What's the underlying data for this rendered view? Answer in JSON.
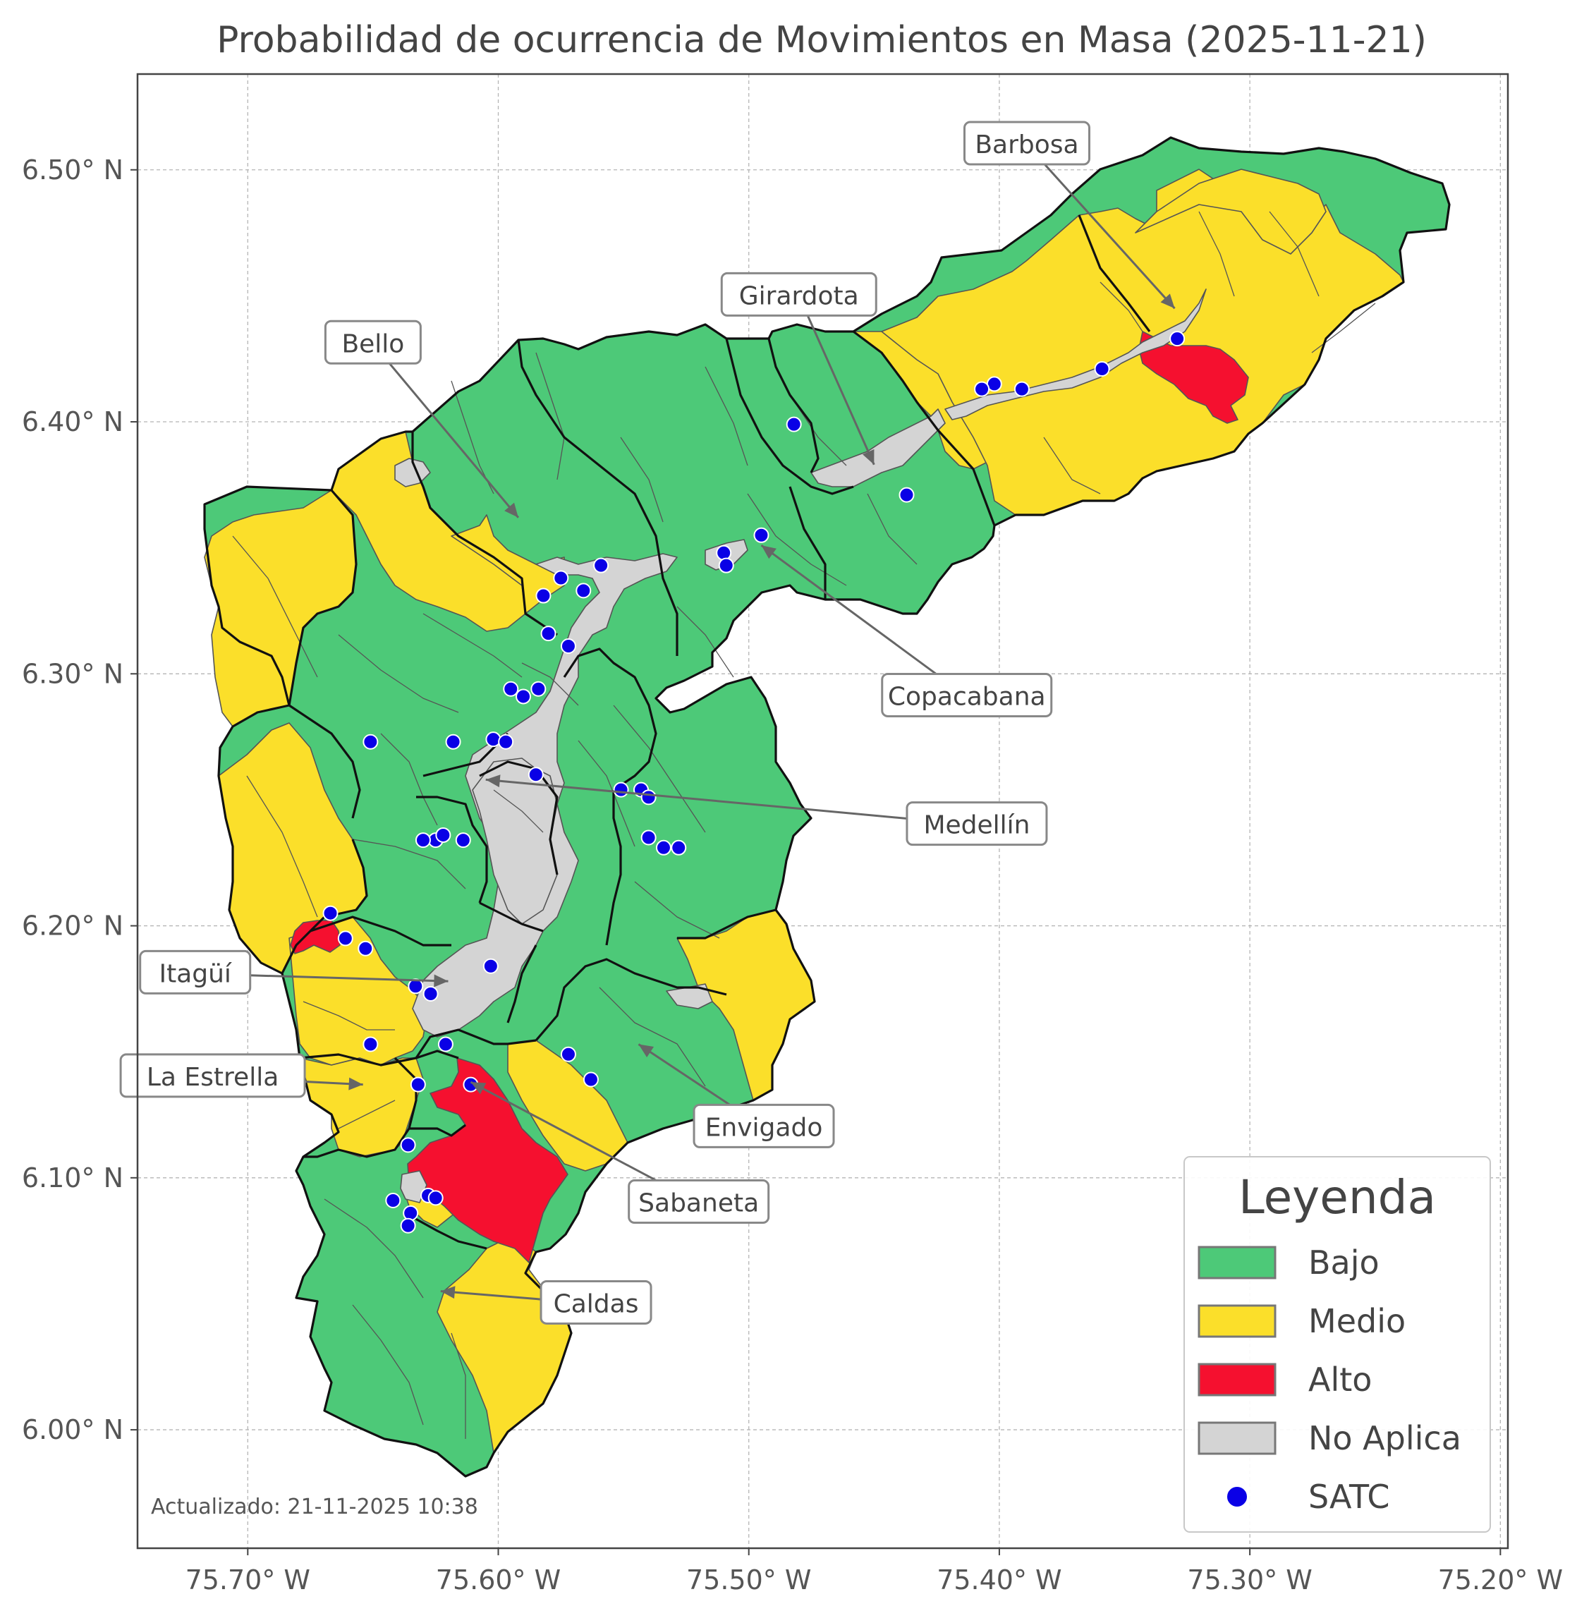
{
  "title": "Probabilidad de ocurrencia de Movimientos en Masa (2025-11-21)",
  "updated": "Actualizado: 21-11-2025 10:38",
  "axes": {
    "x_ticks": [
      "75.70° W",
      "75.60° W",
      "75.50° W",
      "75.40° W",
      "75.30° W",
      "75.20° W"
    ],
    "y_ticks": [
      "6.50° N",
      "6.40° N",
      "6.30° N",
      "6.20° N",
      "6.10° N",
      "6.00° N"
    ],
    "x_values": [
      -75.7,
      -75.6,
      -75.5,
      -75.4,
      -75.3,
      -75.2
    ],
    "y_values": [
      6.5,
      6.4,
      6.3,
      6.2,
      6.1,
      6.0
    ],
    "xlim": [
      -75.744,
      -75.197
    ],
    "ylim": [
      5.953,
      6.538
    ],
    "grid": true
  },
  "legend": {
    "title": "Leyenda",
    "placement": "bottom-right",
    "items": [
      {
        "label": "Bajo",
        "color": "#4dc978",
        "kind": "patch"
      },
      {
        "label": "Medio",
        "color": "#fbdf2a",
        "kind": "patch"
      },
      {
        "label": "Alto",
        "color": "#f5102f",
        "kind": "patch"
      },
      {
        "label": "No Aplica",
        "color": "#d4d4d4",
        "kind": "patch"
      },
      {
        "label": "SATC",
        "color": "#0a00e6",
        "kind": "marker"
      }
    ]
  },
  "municipalities": [
    {
      "name": "Barbosa",
      "label_lon": -75.389,
      "label_lat": 6.51,
      "arrow_lon": -75.33,
      "arrow_lat": 6.445
    },
    {
      "name": "Girardota",
      "label_lon": -75.48,
      "label_lat": 6.45,
      "arrow_lon": -75.45,
      "arrow_lat": 6.383
    },
    {
      "name": "Bello",
      "label_lon": -75.65,
      "label_lat": 6.431,
      "arrow_lon": -75.592,
      "arrow_lat": 6.362
    },
    {
      "name": "Copacabana",
      "label_lon": -75.413,
      "label_lat": 6.291,
      "arrow_lon": -75.495,
      "arrow_lat": 6.351
    },
    {
      "name": "Medellín",
      "label_lon": -75.409,
      "label_lat": 6.24,
      "arrow_lon": -75.605,
      "arrow_lat": 6.258
    },
    {
      "name": "Itagüí",
      "label_lon": -75.721,
      "label_lat": 6.181,
      "arrow_lon": -75.62,
      "arrow_lat": 6.178
    },
    {
      "name": "La Estrella",
      "label_lon": -75.714,
      "label_lat": 6.14,
      "arrow_lon": -75.654,
      "arrow_lat": 6.137
    },
    {
      "name": "Envigado",
      "label_lon": -75.494,
      "label_lat": 6.12,
      "arrow_lon": -75.544,
      "arrow_lat": 6.153
    },
    {
      "name": "Sabaneta",
      "label_lon": -75.52,
      "label_lat": 6.09,
      "arrow_lon": -75.611,
      "arrow_lat": 6.138
    },
    {
      "name": "Caldas",
      "label_lon": -75.561,
      "label_lat": 6.05,
      "arrow_lon": -75.623,
      "arrow_lat": 6.055
    }
  ],
  "satc_stations": [
    [
      -75.329,
      6.433
    ],
    [
      -75.359,
      6.421
    ],
    [
      -75.391,
      6.413
    ],
    [
      -75.402,
      6.415
    ],
    [
      -75.407,
      6.413
    ],
    [
      -75.482,
      6.399
    ],
    [
      -75.437,
      6.371
    ],
    [
      -75.495,
      6.355
    ],
    [
      -75.51,
      6.348
    ],
    [
      -75.509,
      6.343
    ],
    [
      -75.559,
      6.343
    ],
    [
      -75.566,
      6.333
    ],
    [
      -75.575,
      6.338
    ],
    [
      -75.582,
      6.331
    ],
    [
      -75.58,
      6.316
    ],
    [
      -75.572,
      6.311
    ],
    [
      -75.595,
      6.294
    ],
    [
      -75.59,
      6.291
    ],
    [
      -75.584,
      6.294
    ],
    [
      -75.651,
      6.273
    ],
    [
      -75.618,
      6.273
    ],
    [
      -75.602,
      6.274
    ],
    [
      -75.597,
      6.273
    ],
    [
      -75.585,
      6.26
    ],
    [
      -75.551,
      6.254
    ],
    [
      -75.543,
      6.254
    ],
    [
      -75.54,
      6.251
    ],
    [
      -75.54,
      6.235
    ],
    [
      -75.534,
      6.231
    ],
    [
      -75.528,
      6.231
    ],
    [
      -75.625,
      6.234
    ],
    [
      -75.63,
      6.234
    ],
    [
      -75.622,
      6.236
    ],
    [
      -75.614,
      6.234
    ],
    [
      -75.667,
      6.205
    ],
    [
      -75.661,
      6.195
    ],
    [
      -75.653,
      6.191
    ],
    [
      -75.633,
      6.176
    ],
    [
      -75.627,
      6.173
    ],
    [
      -75.603,
      6.184
    ],
    [
      -75.621,
      6.153
    ],
    [
      -75.651,
      6.153
    ],
    [
      -75.572,
      6.149
    ],
    [
      -75.563,
      6.139
    ],
    [
      -75.632,
      6.137
    ],
    [
      -75.611,
      6.137
    ],
    [
      -75.636,
      6.113
    ],
    [
      -75.642,
      6.091
    ],
    [
      -75.628,
      6.093
    ],
    [
      -75.635,
      6.086
    ],
    [
      -75.636,
      6.081
    ],
    [
      -75.625,
      6.092
    ]
  ]
}
